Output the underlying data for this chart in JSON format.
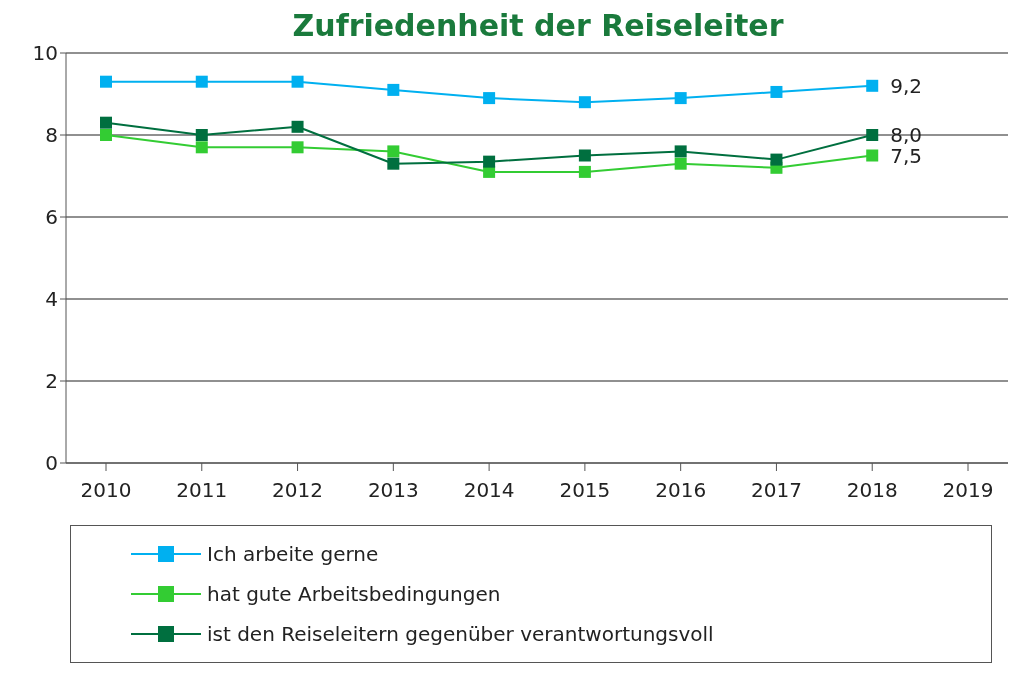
{
  "chart_data": {
    "type": "line",
    "title": "Zufriedenheit der Reiseleiter",
    "categories": [
      "2010",
      "2011",
      "2012",
      "2013",
      "2014",
      "2015",
      "2016",
      "2017",
      "2018",
      "2019"
    ],
    "series": [
      {
        "name": "Ich arbeite gerne",
        "color": "#00b0f0",
        "values": [
          9.3,
          9.3,
          9.3,
          9.1,
          8.9,
          8.8,
          8.9,
          9.05,
          9.2,
          null
        ],
        "value_labels": [
          null,
          null,
          null,
          null,
          null,
          null,
          null,
          null,
          "9,2",
          null
        ]
      },
      {
        "name": "hat gute Arbeitsbedingungen",
        "color": "#33cc33",
        "values": [
          8.0,
          7.7,
          7.7,
          7.6,
          7.1,
          7.1,
          7.3,
          7.2,
          7.5,
          null
        ],
        "value_labels": [
          null,
          null,
          null,
          null,
          null,
          null,
          null,
          null,
          "7,5",
          null
        ]
      },
      {
        "name": "ist den Reiseleitern gegenüber verantwortungsvoll",
        "color": "#006f3f",
        "values": [
          8.3,
          8.0,
          8.2,
          7.3,
          7.35,
          7.5,
          7.6,
          7.4,
          8.0,
          null
        ],
        "value_labels": [
          null,
          null,
          null,
          null,
          null,
          null,
          null,
          null,
          "8,0",
          null
        ]
      }
    ],
    "ylim": [
      0,
      10
    ],
    "yticks": [
      0,
      2,
      4,
      6,
      8,
      10
    ],
    "grid": "y",
    "legend": "bottom",
    "marker": "square",
    "line_style": "solid"
  }
}
